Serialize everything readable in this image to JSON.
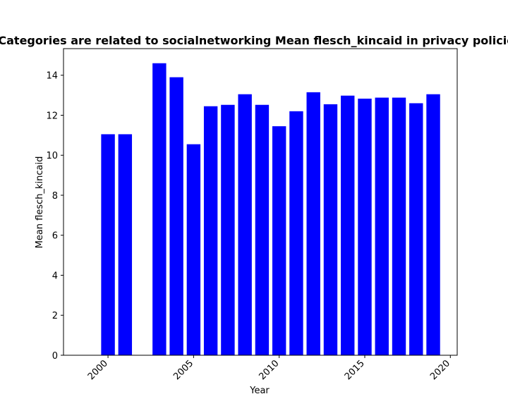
{
  "chart_data": {
    "type": "bar",
    "title": "Categories are related to socialnetworking Mean flesch_kincaid in privacy policies",
    "xlabel": "Year",
    "ylabel": "Mean flesch_kincaid",
    "x": [
      2000,
      2001,
      2003,
      2004,
      2005,
      2006,
      2007,
      2008,
      2009,
      2010,
      2011,
      2012,
      2013,
      2014,
      2015,
      2016,
      2017,
      2018,
      2019
    ],
    "values": [
      11.05,
      11.05,
      14.6,
      13.9,
      10.55,
      12.45,
      12.52,
      13.05,
      12.52,
      11.45,
      12.2,
      13.15,
      12.55,
      12.98,
      12.83,
      12.88,
      12.88,
      12.6,
      13.05
    ],
    "xlim": [
      1997.4,
      2020.4
    ],
    "ylim": [
      0,
      15.33
    ],
    "xticks": [
      2000,
      2005,
      2010,
      2015,
      2020
    ],
    "yticks": [
      0,
      2,
      4,
      6,
      8,
      10,
      12,
      14
    ],
    "bar_color": "#0000ff",
    "grid": false,
    "legend": "none"
  }
}
